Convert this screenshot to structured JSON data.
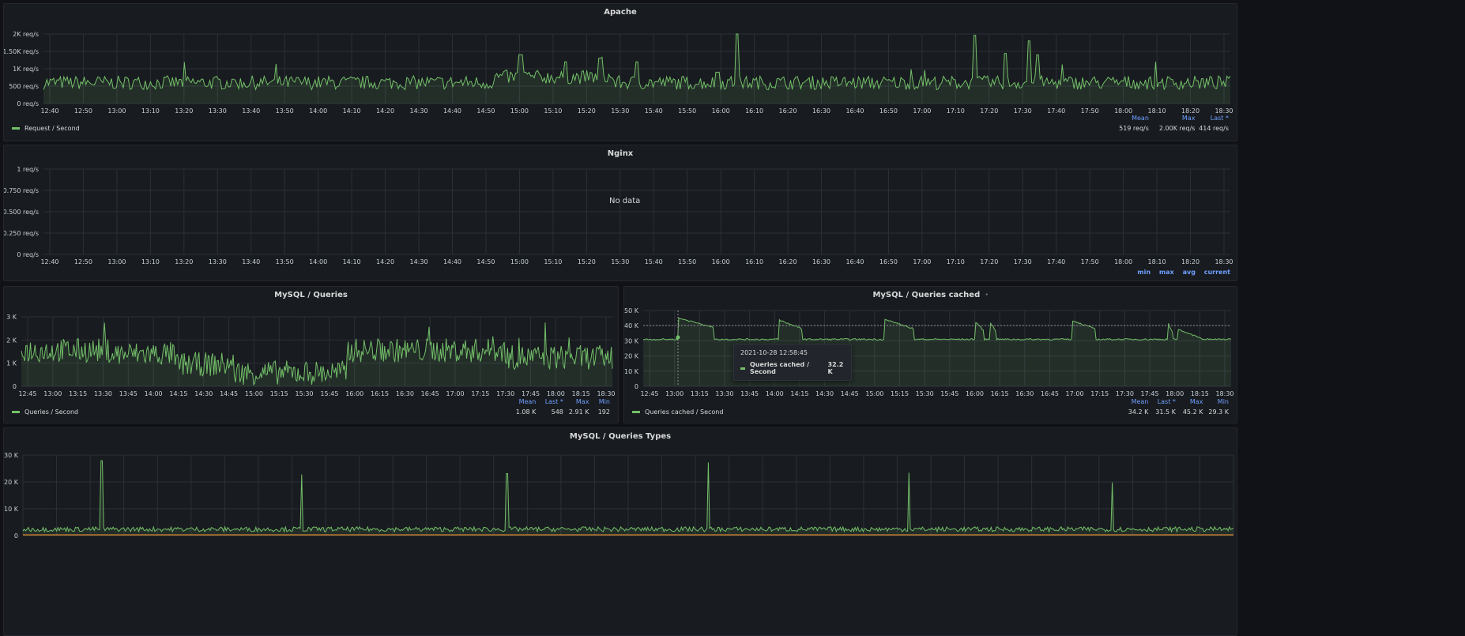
{
  "panels": {
    "apache": {
      "title": "Apache",
      "y_ticks": [
        "2K req/s",
        "1.50K req/s",
        "1K req/s",
        "500 req/s",
        "0 req/s"
      ],
      "x_ticks": [
        "12:40",
        "12:50",
        "13:00",
        "13:10",
        "13:20",
        "13:30",
        "13:40",
        "13:50",
        "14:00",
        "14:10",
        "14:20",
        "14:30",
        "14:40",
        "14:50",
        "15:00",
        "15:10",
        "15:20",
        "15:30",
        "15:40",
        "15:50",
        "16:00",
        "16:10",
        "16:20",
        "16:30",
        "16:40",
        "16:50",
        "17:00",
        "17:10",
        "17:20",
        "17:30",
        "17:40",
        "17:50",
        "18:00",
        "18:10",
        "18:20",
        "18:30"
      ],
      "legend": "Request / Second",
      "stats_headers": [
        "Mean",
        "Max",
        "Last *"
      ],
      "stats_values": [
        "519 req/s",
        "2.00K req/s",
        "414 req/s"
      ]
    },
    "nginx": {
      "title": "Nginx",
      "y_ticks": [
        "1 req/s",
        "0.750 req/s",
        "0.500 req/s",
        "0.250 req/s",
        "0 req/s"
      ],
      "x_ticks": [
        "12:40",
        "12:50",
        "13:00",
        "13:10",
        "13:20",
        "13:30",
        "13:40",
        "13:50",
        "14:00",
        "14:10",
        "14:20",
        "14:30",
        "14:40",
        "14:50",
        "15:00",
        "15:10",
        "15:20",
        "15:30",
        "15:40",
        "15:50",
        "16:00",
        "16:10",
        "16:20",
        "16:30",
        "16:40",
        "16:50",
        "17:00",
        "17:10",
        "17:20",
        "17:30",
        "17:40",
        "17:50",
        "18:00",
        "18:10",
        "18:20",
        "18:30"
      ],
      "no_data": "No data",
      "calc_links": [
        "min",
        "max",
        "avg",
        "current"
      ]
    },
    "mysql_queries": {
      "title": "MySQL / Queries",
      "y_ticks": [
        "3 K",
        "2 K",
        "1 K",
        "0"
      ],
      "x_ticks": [
        "12:45",
        "13:00",
        "13:15",
        "13:30",
        "13:45",
        "14:00",
        "14:15",
        "14:30",
        "14:45",
        "15:00",
        "15:15",
        "15:30",
        "15:45",
        "16:00",
        "16:15",
        "16:30",
        "16:45",
        "17:00",
        "17:15",
        "17:30",
        "17:45",
        "18:00",
        "18:15",
        "18:30"
      ],
      "legend": "Queries / Second",
      "stats_headers": [
        "Mean",
        "Last *",
        "Max",
        "Min"
      ],
      "stats_values": [
        "1.08 K",
        "548",
        "2.91 K",
        "192"
      ]
    },
    "mysql_cached": {
      "title": "MySQL / Queries cached",
      "title_suffix": "·",
      "y_ticks": [
        "50 K",
        "40 K",
        "30 K",
        "20 K",
        "10 K",
        "0"
      ],
      "x_ticks": [
        "12:45",
        "13:00",
        "13:15",
        "13:30",
        "13:45",
        "14:00",
        "14:15",
        "14:30",
        "14:45",
        "15:00",
        "15:15",
        "15:30",
        "15:45",
        "16:00",
        "16:15",
        "16:30",
        "16:45",
        "17:00",
        "17:15",
        "17:30",
        "17:45",
        "18:00",
        "18:15",
        "18:30"
      ],
      "legend": "Queries cached / Second",
      "stats_headers": [
        "Mean",
        "Last *",
        "Max",
        "Min"
      ],
      "stats_values": [
        "34.2 K",
        "31.5 K",
        "45.2 K",
        "29.3 K"
      ],
      "tooltip": {
        "time": "2021-10-28 12:58:45",
        "series": "Queries cached / Second",
        "value": "32.2 K"
      }
    },
    "mysql_types": {
      "title": "MySQL / Queries Types",
      "y_ticks": [
        "30 K",
        "20 K",
        "10 K",
        "0"
      ]
    }
  },
  "colors": {
    "series_green": "#73bf69",
    "series_orange": "#ff9830",
    "link_blue": "#6e9fff",
    "background": "#111217",
    "panel": "#181b1f"
  }
}
